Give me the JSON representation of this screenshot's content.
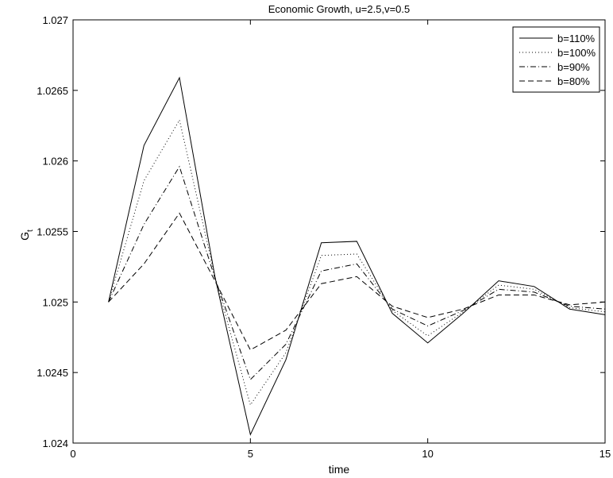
{
  "chart_data": {
    "type": "line",
    "title": "Economic Growth, u=2.5,v=0.5",
    "xlabel": "time",
    "ylabel_main": "G",
    "ylabel_sub": "t",
    "xlim": [
      0,
      15
    ],
    "ylim": [
      1.024,
      1.027
    ],
    "xticks": [
      0,
      5,
      10,
      15
    ],
    "yticks": [
      1.024,
      1.0245,
      1.025,
      1.0255,
      1.026,
      1.0265,
      1.027
    ],
    "grid": false,
    "legend_position": "top-right",
    "x": [
      1,
      2,
      3,
      4,
      5,
      6,
      7,
      8,
      9,
      10,
      11,
      12,
      13,
      14,
      15
    ],
    "series": [
      {
        "name": "b=110%",
        "dash": "solid",
        "values": [
          1.025,
          1.02611,
          1.02659,
          1.02518,
          1.02406,
          1.02459,
          1.02542,
          1.02543,
          1.02492,
          1.02471,
          1.02492,
          1.02515,
          1.02511,
          1.02495,
          1.02491
        ]
      },
      {
        "name": "b=100%",
        "dash": "dotted",
        "values": [
          1.025,
          1.02586,
          1.02629,
          1.02518,
          1.02427,
          1.02464,
          1.02533,
          1.02534,
          1.02494,
          1.02476,
          1.02493,
          1.02512,
          1.02509,
          1.02496,
          1.02493
        ]
      },
      {
        "name": "b=90%",
        "dash": "dashdot",
        "values": [
          1.025,
          1.02555,
          1.02596,
          1.02517,
          1.02445,
          1.0247,
          1.02522,
          1.02527,
          1.02495,
          1.02483,
          1.02494,
          1.02509,
          1.02507,
          1.02497,
          1.02495
        ]
      },
      {
        "name": "b=80%",
        "dash": "dashed",
        "values": [
          1.025,
          1.02527,
          1.02563,
          1.02515,
          1.02466,
          1.0248,
          1.02513,
          1.02518,
          1.02497,
          1.02489,
          1.02495,
          1.02505,
          1.02505,
          1.02498,
          1.025
        ]
      }
    ]
  }
}
